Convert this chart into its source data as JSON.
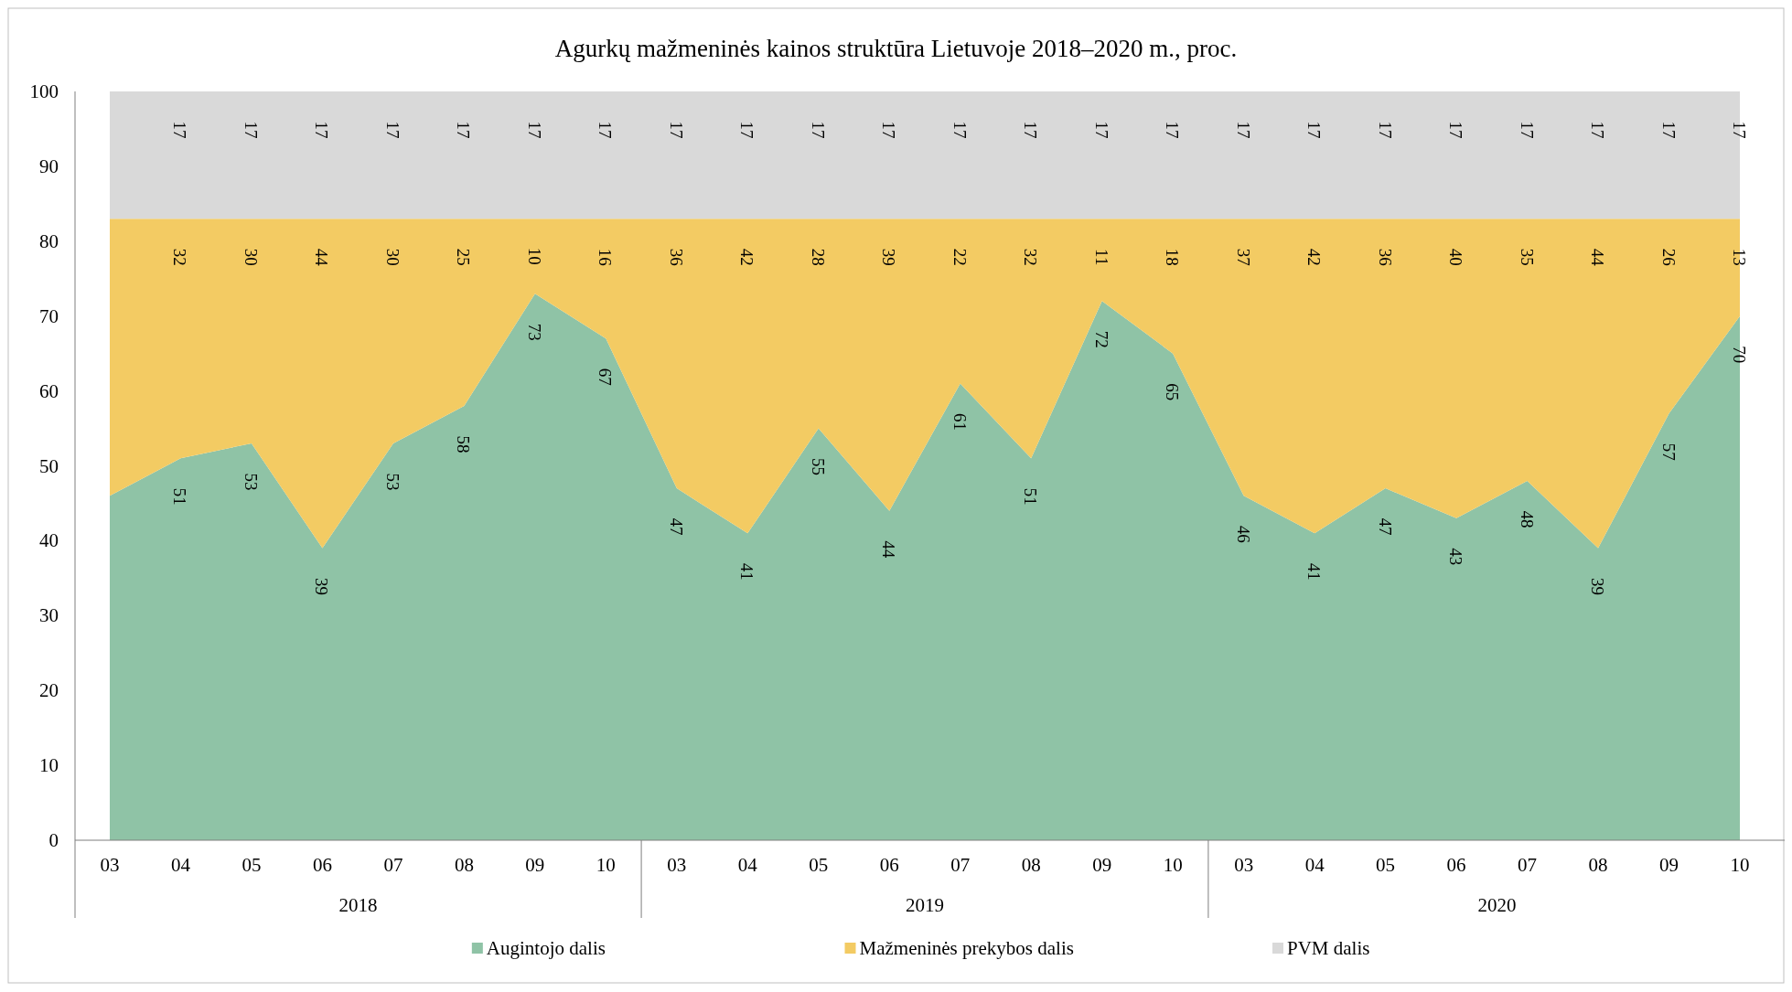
{
  "chart_data": {
    "type": "area",
    "title": "Agurkų mažmeninės kainos struktūra Lietuvoje 2018–2020 m., proc.",
    "stacked": true,
    "categories": [
      "03",
      "04",
      "05",
      "06",
      "07",
      "08",
      "09",
      "10",
      "03",
      "04",
      "05",
      "06",
      "07",
      "08",
      "09",
      "10",
      "03",
      "04",
      "05",
      "06",
      "07",
      "08",
      "09",
      "10"
    ],
    "annotations": [
      "2018",
      "2019",
      "2020"
    ],
    "series": [
      {
        "name": "Augintojo dalis",
        "color": "#8fc3a6",
        "values": [
          46,
          51,
          53,
          39,
          53,
          58,
          73,
          67,
          47,
          41,
          55,
          44,
          61,
          51,
          72,
          65,
          46,
          41,
          47,
          43,
          48,
          39,
          57,
          70
        ],
        "value_labels": [
          null,
          "51",
          "53",
          "39",
          "53",
          "58",
          "73",
          "67",
          "47",
          "41",
          "55",
          "44",
          "61",
          "51",
          "72",
          "65",
          "46",
          "41",
          "47",
          "43",
          "48",
          "39",
          "57",
          "70"
        ]
      },
      {
        "name": "Mažmeninės prekybos dalis",
        "color": "#f3cb63",
        "values": [
          37,
          32,
          30,
          44,
          30,
          25,
          10,
          16,
          36,
          42,
          28,
          39,
          22,
          32,
          11,
          18,
          37,
          42,
          36,
          40,
          35,
          44,
          26,
          13
        ],
        "value_labels": [
          null,
          "32",
          "30",
          "44",
          "30",
          "25",
          "10",
          "16",
          "36",
          "42",
          "28",
          "39",
          "22",
          "32",
          "11",
          "18",
          "37",
          "42",
          "36",
          "40",
          "35",
          "44",
          "26",
          "13"
        ]
      },
      {
        "name": "PVM dalis",
        "color": "#d9d9d9",
        "values": [
          17,
          17,
          17,
          17,
          17,
          17,
          17,
          17,
          17,
          17,
          17,
          17,
          17,
          17,
          17,
          17,
          17,
          17,
          17,
          17,
          17,
          17,
          17,
          17
        ],
        "value_labels": [
          null,
          "17",
          "17",
          "17",
          "17",
          "17",
          "17",
          "17",
          "17",
          "17",
          "17",
          "17",
          "17",
          "17",
          "17",
          "17",
          "17",
          "17",
          "17",
          "17",
          "17",
          "17",
          "17",
          "17"
        ]
      }
    ],
    "ylim": [
      0,
      100
    ],
    "yticks": [
      0,
      10,
      20,
      30,
      40,
      50,
      60,
      70,
      80,
      90,
      100
    ],
    "legend": "bottom"
  }
}
